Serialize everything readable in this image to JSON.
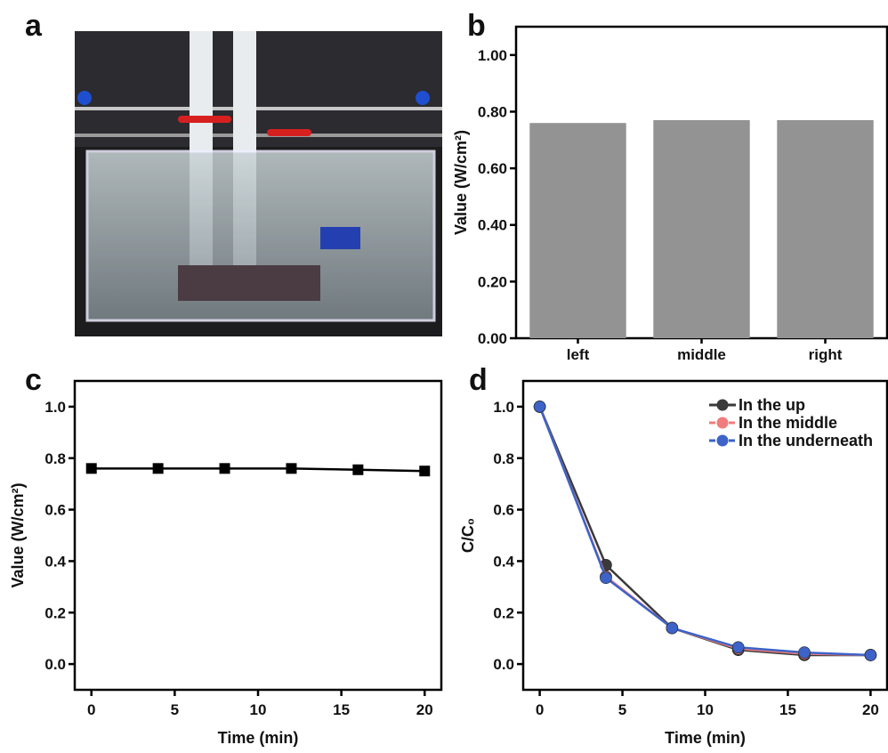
{
  "photo": {
    "label": "a"
  },
  "chart_data": [
    {
      "type": "bar",
      "panel_label": "b",
      "ylabel": "Value (W/cm²)",
      "categories": [
        "left",
        "middle",
        "right"
      ],
      "values": [
        0.76,
        0.77,
        0.77
      ],
      "color": "#939393",
      "ylim": [
        0,
        1.1
      ],
      "yticks": [
        {
          "value": 0,
          "label": "0.00"
        },
        {
          "value": 0.2,
          "label": "0.20"
        },
        {
          "value": 0.4,
          "label": "0.40"
        },
        {
          "value": 0.6,
          "label": "0.60"
        },
        {
          "value": 0.8,
          "label": "0.80"
        },
        {
          "value": 1,
          "label": "1.00"
        }
      ]
    },
    {
      "type": "line",
      "panel_label": "c",
      "xlabel": "Time (min)",
      "ylabel": "Value (W/cm²)",
      "x": [
        0,
        4,
        8,
        12,
        16,
        20
      ],
      "series": [
        {
          "color": "#000000",
          "marker": "square",
          "values": [
            0.76,
            0.76,
            0.76,
            0.76,
            0.755,
            0.75
          ]
        }
      ],
      "xlim": [
        -1,
        21
      ],
      "xticks": [
        0,
        5,
        10,
        15,
        20
      ],
      "ylim": [
        -0.1,
        1.1
      ],
      "yticks": [
        {
          "value": 0,
          "label": "0.0"
        },
        0.2,
        0.4,
        0.6,
        0.8,
        {
          "value": 1,
          "label": "1.0"
        }
      ]
    },
    {
      "type": "line",
      "panel_label": "d",
      "xlabel": "Time (min)",
      "ylabel": "C/C₀",
      "x": [
        0,
        4,
        8,
        12,
        16,
        20
      ],
      "series": [
        {
          "name": "In the up",
          "color": "#3a3a3a",
          "marker": "circle",
          "values": [
            1,
            0.385,
            0.14,
            0.055,
            0.035,
            0.035
          ]
        },
        {
          "name": "In the middle",
          "color": "#f07d7d",
          "marker": "circle",
          "values": [
            1,
            0.34,
            0.14,
            0.06,
            0.04,
            0.035
          ]
        },
        {
          "name": "In the underneath",
          "color": "#3d63c8",
          "marker": "circle",
          "values": [
            1,
            0.335,
            0.14,
            0.065,
            0.045,
            0.035
          ]
        }
      ],
      "legend": "upper right",
      "xlim": [
        -1,
        21
      ],
      "xticks": [
        0,
        5,
        10,
        15,
        20
      ],
      "ylim": [
        -0.1,
        1.1
      ],
      "yticks": [
        {
          "value": 0,
          "label": "0.0"
        },
        0.2,
        0.4,
        0.6,
        0.8,
        {
          "value": 1,
          "label": "1.0"
        }
      ]
    }
  ]
}
